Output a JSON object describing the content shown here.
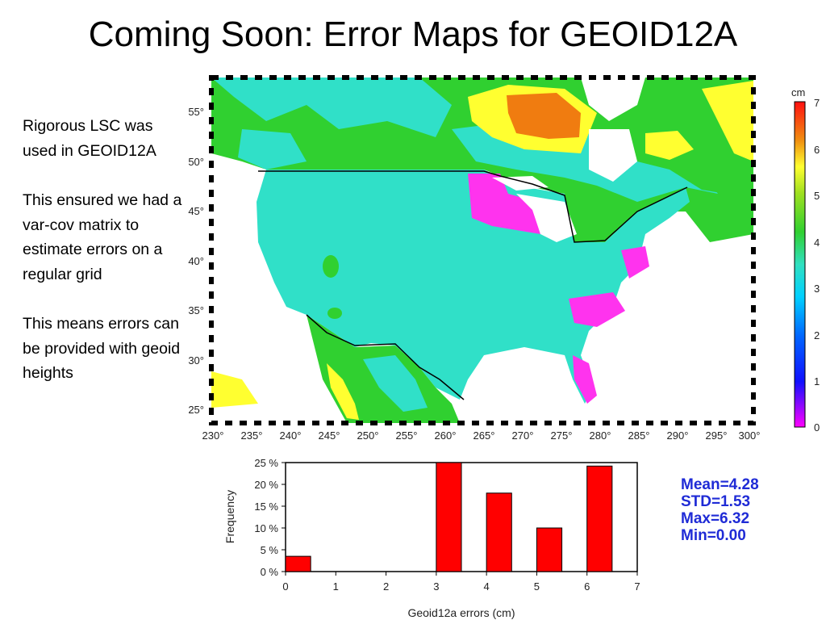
{
  "title": "Coming Soon: Error Maps for GEOID12A",
  "bullets": [
    "Rigorous LSC was used in GEOID12A",
    "This ensured we had a var-cov matrix to estimate errors on a regular grid",
    "This means errors can be provided with geoid heights"
  ],
  "map": {
    "x_ticks": [
      "230°",
      "235°",
      "240°",
      "245°",
      "250°",
      "255°",
      "260°",
      "265°",
      "270°",
      "275°",
      "280°",
      "285°",
      "290°",
      "295°",
      "300°"
    ],
    "y_ticks": [
      "55°",
      "50°",
      "45°",
      "40°",
      "35°",
      "30°",
      "25°"
    ],
    "colorbar": {
      "unit": "cm",
      "ticks": [
        "7",
        "6",
        "5",
        "4",
        "3",
        "2",
        "1",
        "0"
      ],
      "colors": [
        "#ff00ff",
        "#1010ff",
        "#00c8ff",
        "#30e0c8",
        "#30d030",
        "#ffff30",
        "#f07c10",
        "#ff1010"
      ]
    }
  },
  "chart_data": {
    "type": "bar",
    "title": "",
    "xlabel": "Geoid12a errors (cm)",
    "ylabel": "Frequency",
    "x_ticks": [
      "0",
      "1",
      "2",
      "3",
      "4",
      "5",
      "6",
      "7"
    ],
    "y_ticks": [
      "0 %",
      "5 %",
      "10 %",
      "15 %",
      "20 %",
      "25 %"
    ],
    "xlim": [
      0,
      7
    ],
    "ylim": [
      0,
      25
    ],
    "bars": [
      {
        "x": 0.25,
        "value": 3.5
      },
      {
        "x": 3.25,
        "value": 25
      },
      {
        "x": 4.25,
        "value": 18
      },
      {
        "x": 5.25,
        "value": 10
      },
      {
        "x": 6.25,
        "value": 24.2
      }
    ],
    "bar_width": 0.5,
    "bar_color": "#ff0000"
  },
  "stats": {
    "mean": "Mean=4.28",
    "std": "STD=1.53",
    "max": "Max=6.32",
    "min": "Min=0.00"
  }
}
